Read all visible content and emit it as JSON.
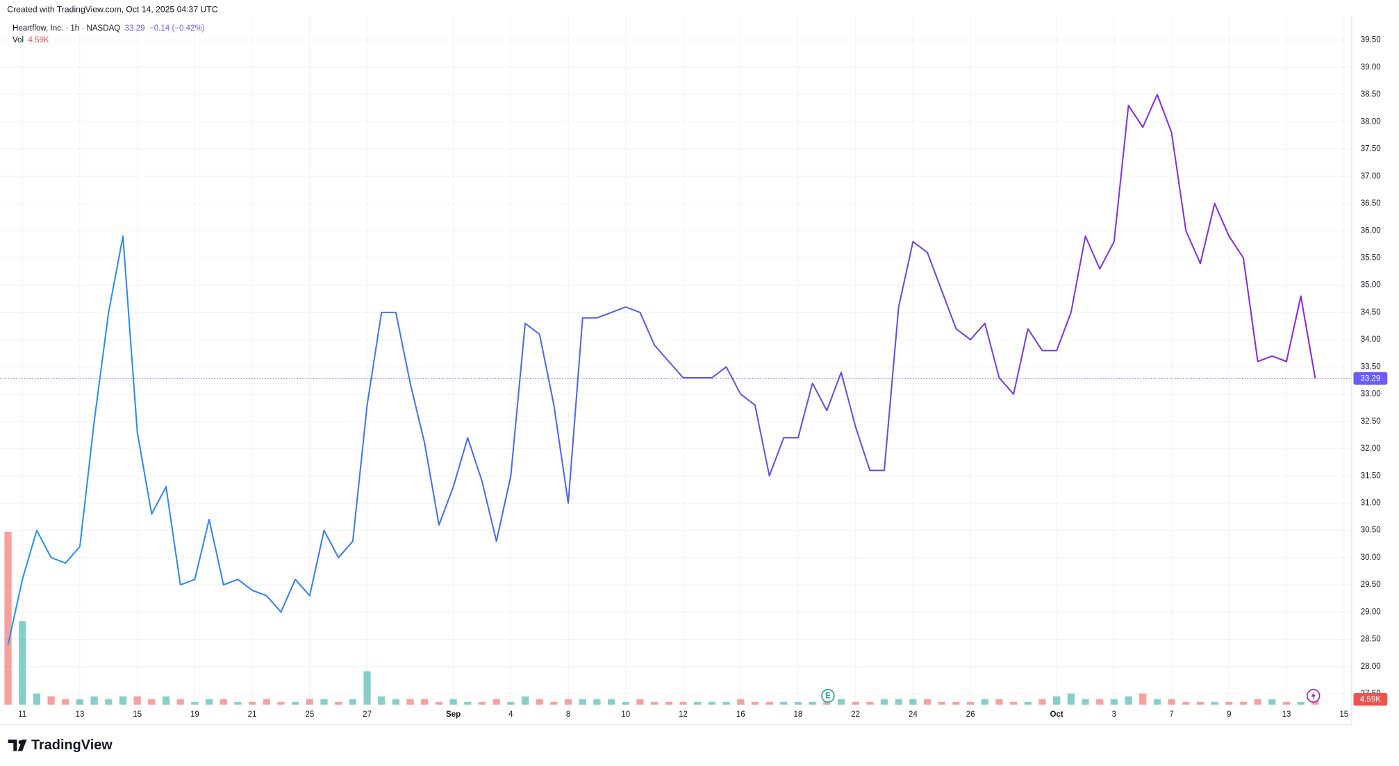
{
  "chart_data": {
    "type": "line",
    "created_note": "Created with TradingView.com, Oct 14, 2025 04:37 UTC",
    "title": "Heartflow, Inc. · 1h · NASDAQ",
    "last_price": 33.29,
    "change_label": "−0.14 (−0.42%)",
    "volume_label": "4.59K",
    "earnings_marker": "E",
    "brand": "TradingView",
    "categories": [
      null,
      "11",
      null,
      null,
      null,
      "13",
      null,
      null,
      null,
      "15",
      null,
      null,
      null,
      "19",
      null,
      null,
      null,
      "21",
      null,
      null,
      null,
      "25",
      null,
      null,
      null,
      "27",
      null,
      null,
      null,
      null,
      null,
      "Sep",
      null,
      null,
      null,
      "4",
      null,
      null,
      null,
      "8",
      null,
      null,
      null,
      "10",
      null,
      null,
      null,
      "12",
      null,
      null,
      null,
      "16",
      null,
      null,
      null,
      "18",
      null,
      null,
      null,
      "22",
      null,
      null,
      null,
      "24",
      null,
      null,
      null,
      "26",
      null,
      null,
      null,
      null,
      null,
      "Oct",
      null,
      null,
      null,
      "3",
      null,
      null,
      null,
      "7",
      null,
      null,
      null,
      "9",
      null,
      null,
      null,
      "13",
      null,
      null,
      null,
      "15"
    ],
    "month_labels": [
      "Sep",
      "Oct"
    ],
    "values": [
      28.4,
      29.6,
      30.5,
      30.0,
      29.9,
      30.2,
      32.5,
      34.5,
      35.9,
      32.3,
      30.8,
      31.3,
      29.5,
      29.6,
      30.7,
      29.5,
      29.6,
      29.4,
      29.3,
      29.0,
      29.6,
      29.3,
      30.5,
      30.0,
      30.3,
      32.8,
      34.5,
      34.5,
      33.2,
      32.1,
      30.6,
      31.3,
      32.2,
      31.4,
      30.3,
      31.5,
      34.3,
      34.1,
      32.8,
      31.0,
      34.4,
      34.4,
      34.5,
      34.6,
      34.5,
      33.9,
      33.6,
      33.3,
      33.3,
      33.3,
      33.5,
      33.0,
      32.8,
      31.5,
      32.2,
      32.2,
      33.2,
      32.7,
      33.4,
      32.4,
      31.6,
      31.6,
      34.6,
      35.8,
      35.6,
      34.9,
      34.2,
      34.0,
      34.3,
      33.3,
      33.0,
      34.2,
      33.8,
      33.8,
      34.5,
      35.9,
      35.3,
      35.8,
      38.3,
      37.9,
      38.5,
      37.8,
      36.0,
      35.4,
      36.5,
      35.9,
      35.5,
      33.6,
      33.7,
      33.6,
      34.8,
      33.29,
      null,
      null
    ],
    "line_gradient": [
      "#2196F3",
      "#8E24E0"
    ],
    "price_line_color": "#6a5cf5",
    "volume": {
      "name": "Vol",
      "up_color": "rgba(38,166,154,0.55)",
      "down_color": "rgba(239,83,80,0.55)",
      "label_color": "#ef5350",
      "vlim": [
        0,
        64
      ],
      "values": [
        62,
        30,
        4,
        3,
        2,
        2,
        3,
        2,
        3,
        3,
        2,
        3,
        2,
        1,
        2,
        2,
        1,
        1,
        2,
        1,
        1,
        2,
        2,
        1,
        2,
        12,
        3,
        2,
        2,
        2,
        1,
        2,
        1,
        1,
        2,
        1,
        3,
        2,
        1,
        2,
        2,
        2,
        2,
        1,
        2,
        1,
        1,
        1,
        1,
        1,
        1,
        2,
        1,
        1,
        1,
        1,
        1,
        1,
        2,
        1,
        1,
        2,
        2,
        2,
        2,
        1,
        1,
        1,
        2,
        2,
        1,
        1,
        2,
        3,
        4,
        2,
        2,
        2,
        3,
        4,
        2,
        2,
        1,
        1,
        1,
        1,
        1,
        2,
        2,
        1,
        1,
        4.59,
        null,
        null
      ]
    },
    "ylim": [
      27.3,
      39.94
    ],
    "yticks": [
      {
        "value": 27.5,
        "label": "27.50"
      },
      {
        "value": 28,
        "label": "28.00"
      },
      {
        "value": 28.5,
        "label": "28.50"
      },
      {
        "value": 29,
        "label": "29.00"
      },
      {
        "value": 29.5,
        "label": "29.50"
      },
      {
        "value": 30,
        "label": "30.00"
      },
      {
        "value": 30.5,
        "label": "30.50"
      },
      {
        "value": 31,
        "label": "31.00"
      },
      {
        "value": 31.5,
        "label": "31.50"
      },
      {
        "value": 32,
        "label": "32.00"
      },
      {
        "value": 32.5,
        "label": "32.50"
      },
      {
        "value": 33,
        "label": "33.00"
      },
      {
        "value": 33.5,
        "label": "33.50"
      },
      {
        "value": 34,
        "label": "34.00"
      },
      {
        "value": 34.5,
        "label": "34.50"
      },
      {
        "value": 35,
        "label": "35.00"
      },
      {
        "value": 35.5,
        "label": "35.50"
      },
      {
        "value": 36,
        "label": "36.00"
      },
      {
        "value": 36.5,
        "label": "36.50"
      },
      {
        "value": 37,
        "label": "37.00"
      },
      {
        "value": 37.5,
        "label": "37.50"
      },
      {
        "value": 38,
        "label": "38.00"
      },
      {
        "value": 38.5,
        "label": "38.50"
      },
      {
        "value": 39,
        "label": "39.00"
      },
      {
        "value": 39.5,
        "label": "39.50"
      }
    ],
    "grid": true
  }
}
